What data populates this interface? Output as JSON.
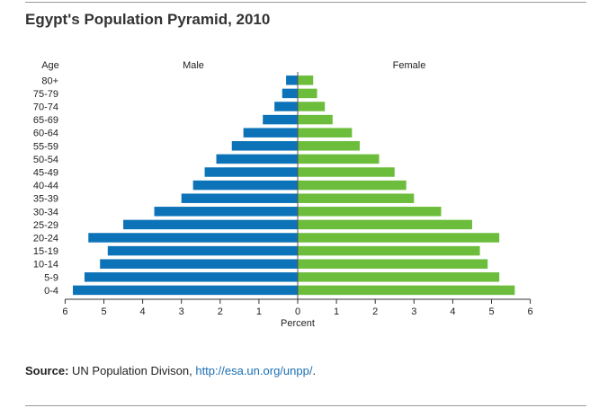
{
  "title": "Egypt's Population Pyramid, 2010",
  "source": {
    "label": "Source:",
    "text": "UN Population Divison,",
    "link": "http://esa.un.org/unpp/",
    "tail": "."
  },
  "colors": {
    "male": "#0d73b8",
    "female": "#6cbd3b",
    "axis": "#333333"
  },
  "chart_data": {
    "type": "bar",
    "orientation": "horizontal-pyramid",
    "age_axis_label": "Age",
    "xlabel": "Percent",
    "xlim": [
      -6,
      6
    ],
    "ticks": [
      -6,
      -5,
      -4,
      -3,
      -2,
      -1,
      0,
      1,
      2,
      3,
      4,
      5,
      6
    ],
    "tick_labels": [
      "6",
      "5",
      "4",
      "3",
      "2",
      "1",
      "0",
      "1",
      "2",
      "3",
      "4",
      "5",
      "6"
    ],
    "categories": [
      "80+",
      "75-79",
      "70-74",
      "65-69",
      "60-64",
      "55-59",
      "50-54",
      "45-49",
      "40-44",
      "35-39",
      "30-34",
      "25-29",
      "20-24",
      "15-19",
      "10-14",
      "5-9",
      "0-4"
    ],
    "series": [
      {
        "name": "Male",
        "values": [
          0.3,
          0.4,
          0.6,
          0.9,
          1.4,
          1.7,
          2.1,
          2.4,
          2.7,
          3.0,
          3.7,
          4.5,
          5.4,
          4.9,
          5.1,
          5.5,
          5.8
        ]
      },
      {
        "name": "Female",
        "values": [
          0.4,
          0.5,
          0.7,
          0.9,
          1.4,
          1.6,
          2.1,
          2.5,
          2.8,
          3.0,
          3.7,
          4.5,
          5.2,
          4.7,
          4.9,
          5.2,
          5.6
        ]
      }
    ]
  }
}
